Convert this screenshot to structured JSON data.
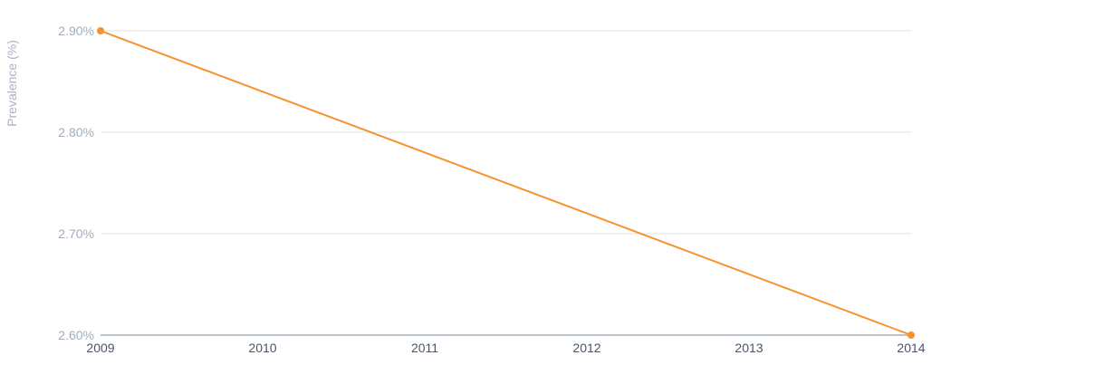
{
  "chart_data": {
    "type": "line",
    "title": "",
    "xlabel": "",
    "ylabel": "Prevalence (%)",
    "x": [
      "2009",
      "2010",
      "2011",
      "2012",
      "2013",
      "2014"
    ],
    "x_tick_labels": [
      "2009",
      "2010",
      "2011",
      "2012",
      "2013",
      "2014"
    ],
    "y_tick_labels": [
      "2.60%",
      "2.70%",
      "2.80%",
      "2.90%"
    ],
    "y_ticks": [
      2.6,
      2.7,
      2.8,
      2.9
    ],
    "ylim": [
      2.6,
      2.9
    ],
    "grid": true,
    "legend": "none",
    "series": [
      {
        "color": "#f7922e",
        "x": [
          "2009",
          "2014"
        ],
        "values": [
          2.9,
          2.6
        ]
      }
    ]
  },
  "colors": {
    "line": "#f7922e",
    "grid": "#dde3ec",
    "baseline": "#8fa0b2"
  }
}
